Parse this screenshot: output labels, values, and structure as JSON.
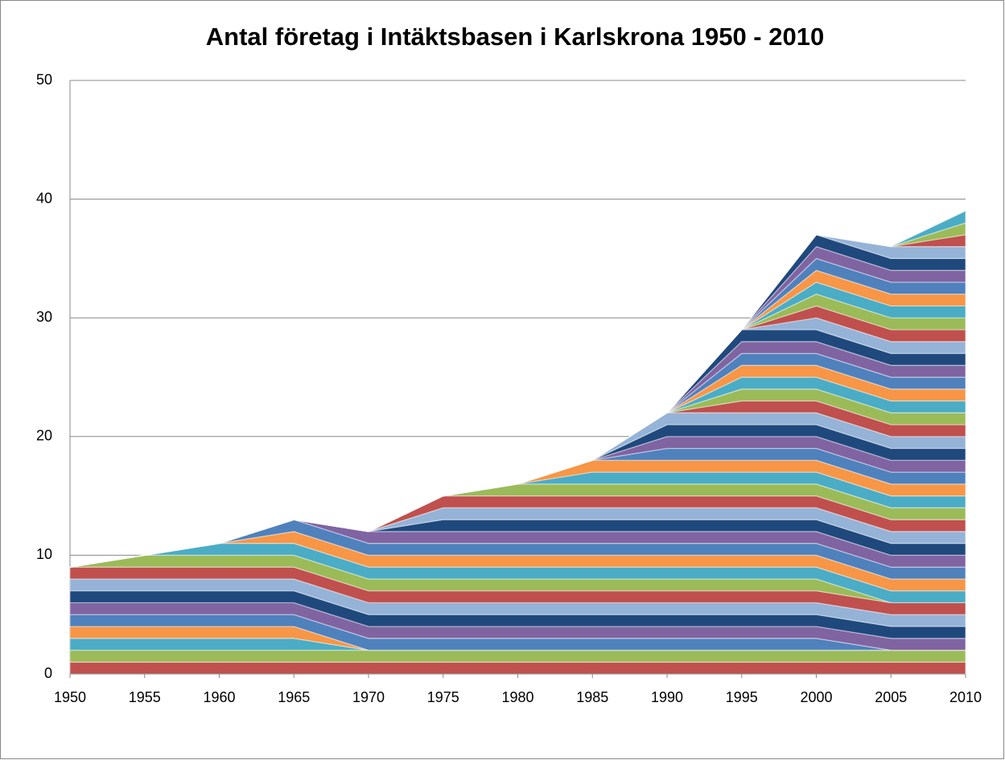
{
  "chart_data": {
    "type": "stacked_area",
    "title": "Antal företag i Intäktsbasen i Karlskrona 1950 - 2010",
    "x": [
      1950,
      1955,
      1960,
      1965,
      1970,
      1975,
      1980,
      1985,
      1990,
      1995,
      2000,
      2005,
      2010
    ],
    "xlim": [
      1950,
      2010
    ],
    "xticks": [
      1950,
      1955,
      1960,
      1965,
      1970,
      1975,
      1980,
      1985,
      1990,
      1995,
      2000,
      2005,
      2010
    ],
    "ylim": [
      0,
      50
    ],
    "yticks": [
      0,
      10,
      20,
      30,
      40,
      50
    ],
    "grid": true,
    "series": [
      {
        "color": "#c0504d",
        "values": [
          1,
          1,
          1,
          1,
          1,
          1,
          1,
          1,
          1,
          1,
          1,
          1,
          1
        ]
      },
      {
        "color": "#9bbb59",
        "values": [
          1,
          1,
          1,
          1,
          1,
          1,
          1,
          1,
          1,
          1,
          1,
          1,
          1
        ]
      },
      {
        "color": "#4bacc6",
        "values": [
          1,
          1,
          1,
          1,
          0,
          0,
          0,
          0,
          0,
          0,
          0,
          0,
          0
        ]
      },
      {
        "color": "#f79646",
        "values": [
          1,
          1,
          1,
          1,
          0,
          0,
          0,
          0,
          0,
          0,
          0,
          0,
          0
        ]
      },
      {
        "color": "#4f81bd",
        "values": [
          1,
          1,
          1,
          1,
          1,
          1,
          1,
          1,
          1,
          1,
          1,
          0,
          0
        ]
      },
      {
        "color": "#8064a2",
        "values": [
          1,
          1,
          1,
          1,
          1,
          1,
          1,
          1,
          1,
          1,
          1,
          1,
          1
        ]
      },
      {
        "color": "#1f497d",
        "values": [
          1,
          1,
          1,
          1,
          1,
          1,
          1,
          1,
          1,
          1,
          1,
          1,
          1
        ]
      },
      {
        "color": "#95b3d7",
        "values": [
          1,
          1,
          1,
          1,
          1,
          1,
          1,
          1,
          1,
          1,
          1,
          1,
          1
        ]
      },
      {
        "color": "#c0504d",
        "values": [
          1,
          1,
          1,
          1,
          1,
          1,
          1,
          1,
          1,
          1,
          1,
          1,
          1
        ]
      },
      {
        "color": "#9bbb59",
        "values": [
          0,
          1,
          1,
          1,
          1,
          1,
          1,
          1,
          1,
          1,
          1,
          0,
          0
        ]
      },
      {
        "color": "#4bacc6",
        "values": [
          0,
          0,
          1,
          1,
          1,
          1,
          1,
          1,
          1,
          1,
          1,
          1,
          1
        ]
      },
      {
        "color": "#f79646",
        "values": [
          0,
          0,
          0,
          1,
          1,
          1,
          1,
          1,
          1,
          1,
          1,
          1,
          1
        ]
      },
      {
        "color": "#4f81bd",
        "values": [
          0,
          0,
          0,
          1,
          1,
          1,
          1,
          1,
          1,
          1,
          1,
          1,
          1
        ]
      },
      {
        "color": "#8064a2",
        "values": [
          0,
          0,
          0,
          0,
          1,
          1,
          1,
          1,
          1,
          1,
          1,
          1,
          1
        ]
      },
      {
        "color": "#1f497d",
        "values": [
          0,
          0,
          0,
          0,
          0,
          1,
          1,
          1,
          1,
          1,
          1,
          1,
          1
        ]
      },
      {
        "color": "#95b3d7",
        "values": [
          0,
          0,
          0,
          0,
          0,
          1,
          1,
          1,
          1,
          1,
          1,
          1,
          1
        ]
      },
      {
        "color": "#c0504d",
        "values": [
          0,
          0,
          0,
          0,
          0,
          1,
          1,
          1,
          1,
          1,
          1,
          1,
          1
        ]
      },
      {
        "color": "#9bbb59",
        "values": [
          0,
          0,
          0,
          0,
          0,
          0,
          1,
          1,
          1,
          1,
          1,
          1,
          1
        ]
      },
      {
        "color": "#4bacc6",
        "values": [
          0,
          0,
          0,
          0,
          0,
          0,
          0,
          1,
          1,
          1,
          1,
          1,
          1
        ]
      },
      {
        "color": "#f79646",
        "values": [
          0,
          0,
          0,
          0,
          0,
          0,
          0,
          1,
          1,
          1,
          1,
          1,
          1
        ]
      },
      {
        "color": "#4f81bd",
        "values": [
          0,
          0,
          0,
          0,
          0,
          0,
          0,
          0,
          1,
          1,
          1,
          1,
          1
        ]
      },
      {
        "color": "#8064a2",
        "values": [
          0,
          0,
          0,
          0,
          0,
          0,
          0,
          0,
          1,
          1,
          1,
          1,
          1
        ]
      },
      {
        "color": "#1f497d",
        "values": [
          0,
          0,
          0,
          0,
          0,
          0,
          0,
          0,
          1,
          1,
          1,
          1,
          1
        ]
      },
      {
        "color": "#95b3d7",
        "values": [
          0,
          0,
          0,
          0,
          0,
          0,
          0,
          0,
          1,
          1,
          1,
          1,
          1
        ]
      },
      {
        "color": "#c0504d",
        "values": [
          0,
          0,
          0,
          0,
          0,
          0,
          0,
          0,
          0,
          1,
          1,
          1,
          1
        ]
      },
      {
        "color": "#9bbb59",
        "values": [
          0,
          0,
          0,
          0,
          0,
          0,
          0,
          0,
          0,
          1,
          1,
          1,
          1
        ]
      },
      {
        "color": "#4bacc6",
        "values": [
          0,
          0,
          0,
          0,
          0,
          0,
          0,
          0,
          0,
          1,
          1,
          1,
          1
        ]
      },
      {
        "color": "#f79646",
        "values": [
          0,
          0,
          0,
          0,
          0,
          0,
          0,
          0,
          0,
          1,
          1,
          1,
          1
        ]
      },
      {
        "color": "#4f81bd",
        "values": [
          0,
          0,
          0,
          0,
          0,
          0,
          0,
          0,
          0,
          1,
          1,
          1,
          1
        ]
      },
      {
        "color": "#8064a2",
        "values": [
          0,
          0,
          0,
          0,
          0,
          0,
          0,
          0,
          0,
          1,
          1,
          1,
          1
        ]
      },
      {
        "color": "#1f497d",
        "values": [
          0,
          0,
          0,
          0,
          0,
          0,
          0,
          0,
          0,
          1,
          1,
          1,
          1
        ]
      },
      {
        "color": "#95b3d7",
        "values": [
          0,
          0,
          0,
          0,
          0,
          0,
          0,
          0,
          0,
          0,
          1,
          1,
          1
        ]
      },
      {
        "color": "#c0504d",
        "values": [
          0,
          0,
          0,
          0,
          0,
          0,
          0,
          0,
          0,
          0,
          1,
          1,
          1
        ]
      },
      {
        "color": "#9bbb59",
        "values": [
          0,
          0,
          0,
          0,
          0,
          0,
          0,
          0,
          0,
          0,
          1,
          1,
          1
        ]
      },
      {
        "color": "#4bacc6",
        "values": [
          0,
          0,
          0,
          0,
          0,
          0,
          0,
          0,
          0,
          0,
          1,
          1,
          1
        ]
      },
      {
        "color": "#f79646",
        "values": [
          0,
          0,
          0,
          0,
          0,
          0,
          0,
          0,
          0,
          0,
          1,
          1,
          1
        ]
      },
      {
        "color": "#4f81bd",
        "values": [
          0,
          0,
          0,
          0,
          0,
          0,
          0,
          0,
          0,
          0,
          1,
          1,
          1
        ]
      },
      {
        "color": "#8064a2",
        "values": [
          0,
          0,
          0,
          0,
          0,
          0,
          0,
          0,
          0,
          0,
          1,
          1,
          1
        ]
      },
      {
        "color": "#1f497d",
        "values": [
          0,
          0,
          0,
          0,
          0,
          0,
          0,
          0,
          0,
          0,
          1,
          1,
          1
        ]
      },
      {
        "color": "#95b3d7",
        "values": [
          0,
          0,
          0,
          0,
          0,
          0,
          0,
          0,
          0,
          0,
          0,
          1,
          1
        ]
      },
      {
        "color": "#c0504d",
        "values": [
          0,
          0,
          0,
          0,
          0,
          0,
          0,
          0,
          0,
          0,
          0,
          0,
          1
        ]
      },
      {
        "color": "#9bbb59",
        "values": [
          0,
          0,
          0,
          0,
          0,
          0,
          0,
          0,
          0,
          0,
          0,
          0,
          1
        ]
      },
      {
        "color": "#4bacc6",
        "values": [
          0,
          0,
          0,
          0,
          0,
          0,
          0,
          0,
          0,
          0,
          0,
          0,
          1
        ]
      }
    ]
  }
}
